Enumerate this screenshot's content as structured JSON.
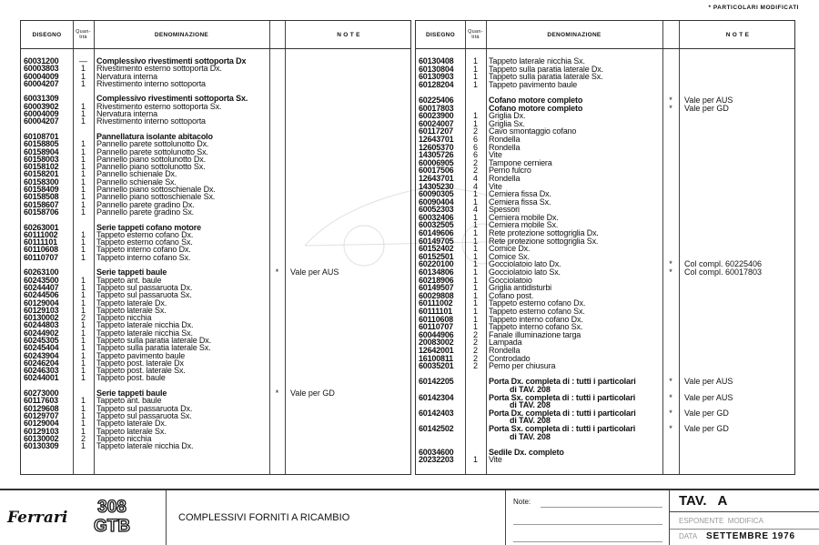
{
  "legend": "* PARTICOLARI MODIFICATI",
  "headers": {
    "code": "DISEGNO",
    "qty": "Quan-tità",
    "desc": "DENOMINAZIONE",
    "note": "N O T E"
  },
  "left": [
    {
      "code": "60031200",
      "qty": "—",
      "desc": "Complessivo rivestimenti sottoporta Dx",
      "bold": true
    },
    {
      "code": "60003803",
      "qty": "1",
      "desc": "Rivestimento esterno sottoporta Dx."
    },
    {
      "code": "60004009",
      "qty": "1",
      "desc": "Nervatura interna"
    },
    {
      "code": "60004207",
      "qty": "1",
      "desc": "Rivestimento interno sottoporta"
    },
    {
      "blank": true
    },
    {
      "code": "60031309",
      "qty": "",
      "desc": "Complessivo rivestimenti sottoporta Sx.",
      "bold": true
    },
    {
      "code": "60003902",
      "qty": "1",
      "desc": "Rivestimento esterno sottoporta Sx."
    },
    {
      "code": "60004009",
      "qty": "1",
      "desc": "Nervatura interna"
    },
    {
      "code": "60004207",
      "qty": "1",
      "desc": "Rivestimento interno sottoporta"
    },
    {
      "blank": true
    },
    {
      "code": "60108701",
      "qty": "",
      "desc": "Pannellatura isolante abitacolo",
      "bold": true
    },
    {
      "code": "60158805",
      "qty": "1",
      "desc": "Pannello parete sottolunotto Dx."
    },
    {
      "code": "60158904",
      "qty": "1",
      "desc": "Pannello parete sottolunotto Sx."
    },
    {
      "code": "60158003",
      "qty": "1",
      "desc": "Pannello piano sottolunotto Dx."
    },
    {
      "code": "60158102",
      "qty": "1",
      "desc": "Pannello piano sottolunotto Sx."
    },
    {
      "code": "60158201",
      "qty": "1",
      "desc": "Pannello schienale Dx."
    },
    {
      "code": "60158300",
      "qty": "1",
      "desc": "Pannello schienale Sx."
    },
    {
      "code": "60158409",
      "qty": "1",
      "desc": "Pannello piano sottoschienale Dx."
    },
    {
      "code": "60158508",
      "qty": "1",
      "desc": "Pannello piano sottoschienale Sx."
    },
    {
      "code": "60158607",
      "qty": "1",
      "desc": "Pannello parete gradino Dx."
    },
    {
      "code": "60158706",
      "qty": "1",
      "desc": "Pannello parete gradino Sx."
    },
    {
      "blank": true
    },
    {
      "code": "60263001",
      "qty": "",
      "desc": "Serie tappeti cofano motore",
      "bold": true
    },
    {
      "code": "60111002",
      "qty": "1",
      "desc": "Tappeto esterno cofano Dx."
    },
    {
      "code": "60111101",
      "qty": "1",
      "desc": "Tappeto esterno cofano Sx."
    },
    {
      "code": "60110608",
      "qty": "1",
      "desc": "Tappeto interno cofano Dx."
    },
    {
      "code": "60110707",
      "qty": "1",
      "desc": "Tappeto interno cofano Sx."
    },
    {
      "blank": true
    },
    {
      "code": "60263100",
      "qty": "",
      "desc": "Serie tappeti baule",
      "bold": true,
      "star": "*",
      "note": "Vale per AUS"
    },
    {
      "code": "60243500",
      "qty": "1",
      "desc": "Tappeto ant. baule"
    },
    {
      "code": "60244407",
      "qty": "1",
      "desc": "Tappeto sul passaruota Dx."
    },
    {
      "code": "60244506",
      "qty": "1",
      "desc": "Tappeto sul passaruota Sx."
    },
    {
      "code": "60129004",
      "qty": "1",
      "desc": "Tappeto laterale Dx."
    },
    {
      "code": "60129103",
      "qty": "1",
      "desc": "Tappeto laterale Sx."
    },
    {
      "code": "60130002",
      "qty": "2",
      "desc": "Tappeto nicchia"
    },
    {
      "code": "60244803",
      "qty": "1",
      "desc": "Tappeto laterale nicchia Dx."
    },
    {
      "code": "60244902",
      "qty": "1",
      "desc": "Tappeto laterale nicchia Sx."
    },
    {
      "code": "60245305",
      "qty": "1",
      "desc": "Tappeto sulla paratia laterale Dx."
    },
    {
      "code": "60245404",
      "qty": "1",
      "desc": "Tappeto sulla paratia laterale Sx."
    },
    {
      "code": "60243904",
      "qty": "1",
      "desc": "Tappeto pavimento baule"
    },
    {
      "code": "60246204",
      "qty": "1",
      "desc": "Tappeto post. laterale Dx"
    },
    {
      "code": "60246303",
      "qty": "1",
      "desc": "Tappeto post. laterale Sx."
    },
    {
      "code": "60244001",
      "qty": "1",
      "desc": "Tappeto post. baule"
    },
    {
      "blank": true
    },
    {
      "code": "60273000",
      "qty": "",
      "desc": "Serie tappeti baule",
      "bold": true,
      "star": "*",
      "note": "Vale per GD"
    },
    {
      "code": "60117603",
      "qty": "1",
      "desc": "Tappeto ant. baule"
    },
    {
      "code": "60129608",
      "qty": "1",
      "desc": "Tappeto sul passaruota Dx."
    },
    {
      "code": "60129707",
      "qty": "1",
      "desc": "Tappeto sul passaruota Sx."
    },
    {
      "code": "60129004",
      "qty": "1",
      "desc": "Tappeto laterale Dx."
    },
    {
      "code": "60129103",
      "qty": "1",
      "desc": "Tappeto laterale Sx."
    },
    {
      "code": "60130002",
      "qty": "2",
      "desc": "Tappeto nicchia"
    },
    {
      "code": "60130309",
      "qty": "1",
      "desc": "Tappeto laterale nicchia Dx."
    }
  ],
  "right": [
    {
      "code": "60130408",
      "qty": "1",
      "desc": "Tappeto laterale nicchia Sx."
    },
    {
      "code": "60130804",
      "qty": "1",
      "desc": "Tappeto sulla paratia laterale Dx."
    },
    {
      "code": "60130903",
      "qty": "1",
      "desc": "Tappeto sulla paratia laterale Sx."
    },
    {
      "code": "60128204",
      "qty": "1",
      "desc": "Tappeto pavimento baule"
    },
    {
      "blank": true
    },
    {
      "code": "60225406",
      "qty": "",
      "desc": "Cofano motore completo",
      "bold": true,
      "star": "*",
      "note": "Vale per AUS"
    },
    {
      "code": "60017803",
      "qty": "",
      "desc": "Cofano motore completo",
      "bold": true,
      "star": "*",
      "note": "Vale per GD"
    },
    {
      "code": "60023900",
      "qty": "1",
      "desc": "Griglia Dx."
    },
    {
      "code": "60024007",
      "qty": "1",
      "desc": "Griglia Sx."
    },
    {
      "code": "60117207",
      "qty": "2",
      "desc": "Cavo smontaggio cofano"
    },
    {
      "code": "12643701",
      "qty": "6",
      "desc": "Rondella"
    },
    {
      "code": "12605370",
      "qty": "6",
      "desc": "Rondella"
    },
    {
      "code": "14305726",
      "qty": "6",
      "desc": "Vite"
    },
    {
      "code": "60006905",
      "qty": "2",
      "desc": "Tampone cerniera"
    },
    {
      "code": "60017506",
      "qty": "2",
      "desc": "Perno fulcro"
    },
    {
      "code": "12643701",
      "qty": "4",
      "desc": "Rondella"
    },
    {
      "code": "14305230",
      "qty": "4",
      "desc": "Vite"
    },
    {
      "code": "60090305",
      "qty": "1",
      "desc": "Cerniera fissa Dx."
    },
    {
      "code": "60090404",
      "qty": "1",
      "desc": "Cerniera fissa Sx."
    },
    {
      "code": "60052303",
      "qty": "4",
      "desc": "Spessori"
    },
    {
      "code": "60032406",
      "qty": "1",
      "desc": "Cerniera mobile Dx."
    },
    {
      "code": "60032505",
      "qty": "1",
      "desc": "Cerniera mobile Sx."
    },
    {
      "code": "60149606",
      "qty": "1",
      "desc": "Rete protezione sottogriglia Dx."
    },
    {
      "code": "60149705",
      "qty": "1",
      "desc": "Rete protezione sottogriglia Sx."
    },
    {
      "code": "60152402",
      "qty": "1",
      "desc": "Cornice Dx."
    },
    {
      "code": "60152501",
      "qty": "1",
      "desc": "Cornice Sx."
    },
    {
      "code": "60220100",
      "qty": "1",
      "desc": "Gocciolatoio lato Dx.",
      "star": "*",
      "note": "Col compl. 60225406"
    },
    {
      "code": "60134806",
      "qty": "1",
      "desc": "Gocciolatoio lato Sx.",
      "star": "*",
      "note": "Col compl. 60017803"
    },
    {
      "code": "60218906",
      "qty": "1",
      "desc": "Gocciolatoio"
    },
    {
      "code": "60149507",
      "qty": "1",
      "desc": "Griglia antidisturbi"
    },
    {
      "code": "60029808",
      "qty": "1",
      "desc": "Cofano post."
    },
    {
      "code": "60111002",
      "qty": "1",
      "desc": "Tappeto esterno cofano Dx."
    },
    {
      "code": "60111101",
      "qty": "1",
      "desc": "Tappeto esterno cofano Sx."
    },
    {
      "code": "60110608",
      "qty": "1",
      "desc": "Tappeto interno cofano Dx."
    },
    {
      "code": "60110707",
      "qty": "1",
      "desc": "Tappeto interno cofano Sx."
    },
    {
      "code": "60044906",
      "qty": "2",
      "desc": "Fanale illuminazione targa"
    },
    {
      "code": "20083002",
      "qty": "2",
      "desc": "Lampada"
    },
    {
      "code": "12642001",
      "qty": "2",
      "desc": "Rondella"
    },
    {
      "code": "16100811",
      "qty": "2",
      "desc": "Controdado"
    },
    {
      "code": "60035201",
      "qty": "2",
      "desc": "Perno per chiusura"
    },
    {
      "blank": true
    },
    {
      "code": "60142205",
      "qty": "",
      "desc": "Porta Dx. completa di : tutti i particolari",
      "bold": true,
      "star": "*",
      "note": "Vale per AUS"
    },
    {
      "cont": "di TAV. 208"
    },
    {
      "code": "60142304",
      "qty": "",
      "desc": "Porta Sx. completa di : tutti i particolari",
      "bold": true,
      "star": "*",
      "note": "Vale per AUS"
    },
    {
      "cont": "di TAV. 208"
    },
    {
      "code": "60142403",
      "qty": "",
      "desc": "Porta Dx. completa di : tutti i particolari",
      "bold": true,
      "star": "*",
      "note": "Vale per GD"
    },
    {
      "cont": "di TAV. 208"
    },
    {
      "code": "60142502",
      "qty": "",
      "desc": "Porta Sx. completa di : tutti i particolari",
      "bold": true,
      "star": "*",
      "note": "Vale per GD"
    },
    {
      "cont": "di TAV. 208"
    },
    {
      "blank": true
    },
    {
      "code": "60034600",
      "qty": "",
      "desc": "Sedile Dx. completo",
      "bold": true
    },
    {
      "code": "20232203",
      "qty": "1",
      "desc": "Vite"
    }
  ],
  "footer": {
    "brand": "Ferrari",
    "model_top": "308",
    "model_bottom": "GTB",
    "title": "COMPLESSIVI FORNITI A RICAMBIO",
    "note_label": "Note:",
    "tav": "TAV.   A",
    "esponente_label": "ESPONENTE  MODIFICA",
    "data_label": "DATA",
    "data_value": "SETTEMBRE 1976"
  }
}
